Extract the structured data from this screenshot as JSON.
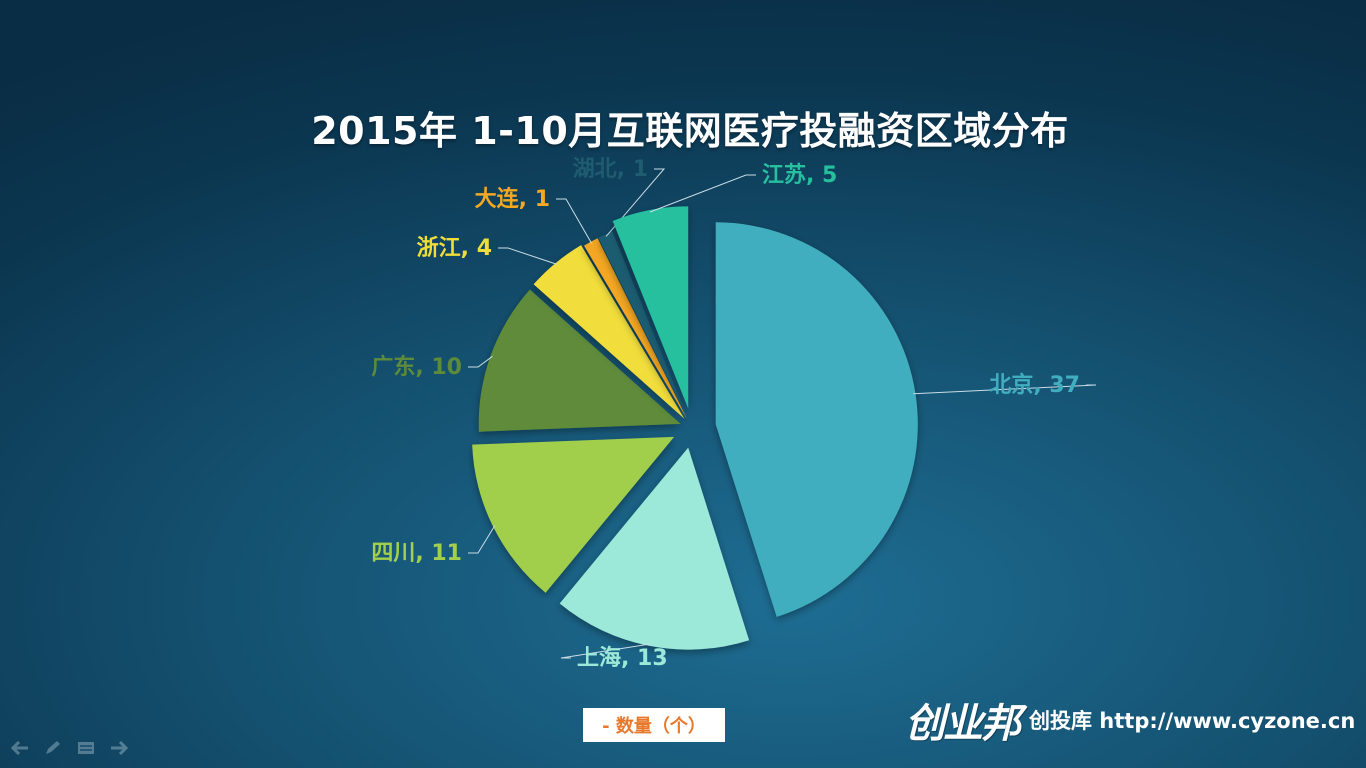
{
  "chart_data": {
    "type": "pie",
    "title": "2015年 1-10月互联网医疗投融资区域分布",
    "legend": {
      "label": "- 数量（个）",
      "placement": "bottom"
    },
    "slices": [
      {
        "label": "北京, 37",
        "name": "北京",
        "value": 37,
        "color": "#41aebf"
      },
      {
        "label": "上海, 13",
        "name": "上海",
        "value": 13,
        "color": "#9ce9d9"
      },
      {
        "label": "四川, 11",
        "name": "四川",
        "value": 11,
        "color": "#a2cf4c"
      },
      {
        "label": "广东, 10",
        "name": "广东",
        "value": 10,
        "color": "#5e8b3a"
      },
      {
        "label": "浙江, 4",
        "name": "浙江",
        "value": 4,
        "color": "#f1dd3a"
      },
      {
        "label": "大连, 1",
        "name": "大连",
        "value": 1,
        "color": "#f4a721"
      },
      {
        "label": "湖北, 1",
        "name": "湖北",
        "value": 1,
        "color": "#1f5c70"
      },
      {
        "label": "江苏, 5",
        "name": "江苏",
        "value": 5,
        "color": "#27c09f"
      }
    ]
  },
  "footer": {
    "brand_logo": "创业邦",
    "brand_text": "创投库 http://www.cyzone.cn"
  },
  "nav_icons": [
    "arrow-left-icon",
    "pen-icon",
    "menu-icon",
    "arrow-right-icon"
  ]
}
